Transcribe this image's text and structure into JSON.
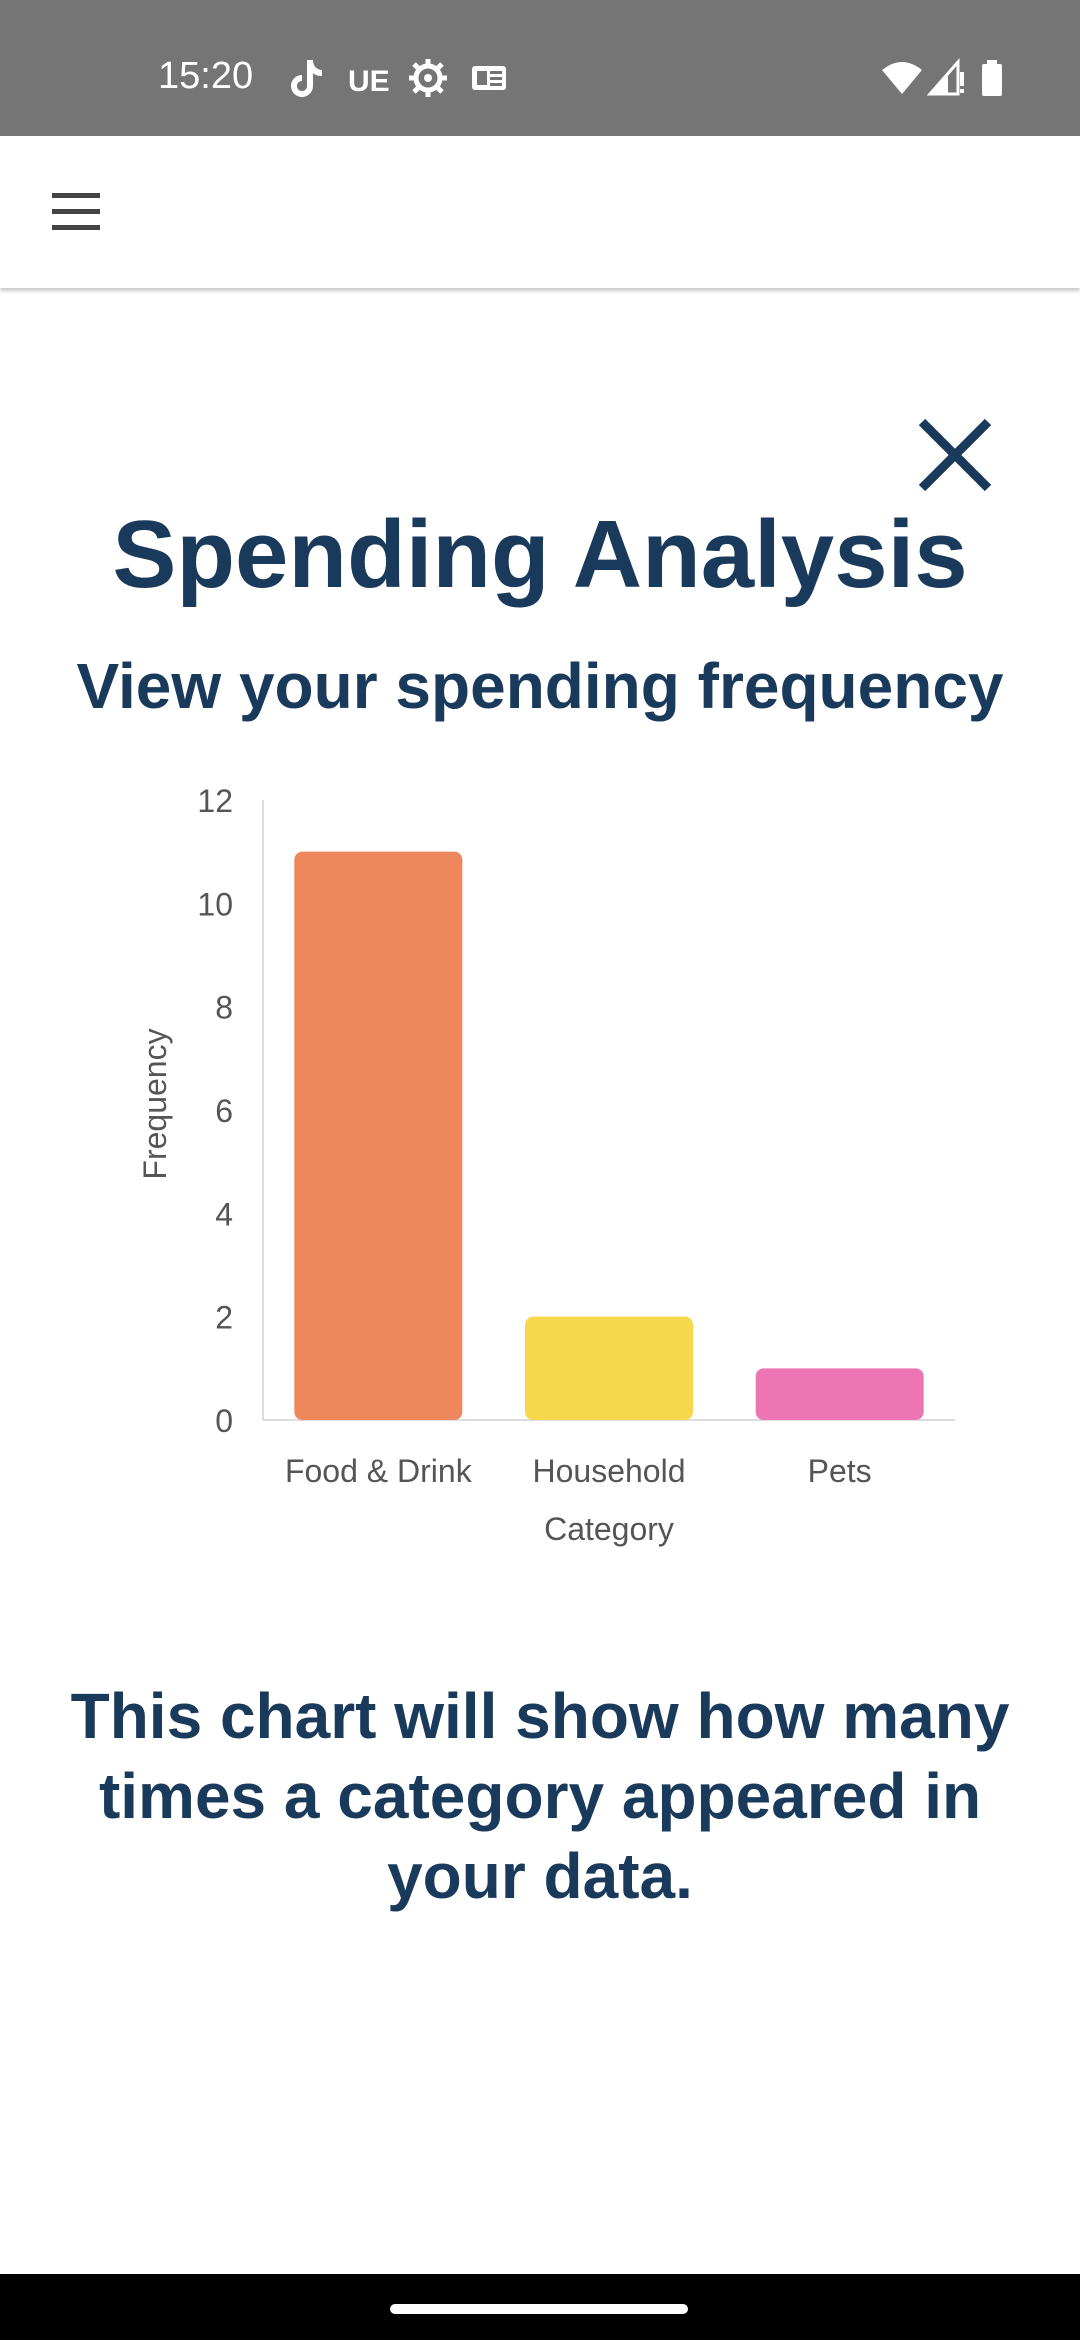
{
  "status_bar": {
    "time": "15:20",
    "notification_icons": [
      "tiktok-icon",
      "ue-icon",
      "settings-gear-icon",
      "news-card-icon"
    ],
    "ue_label": "UE",
    "right_icons": [
      "wifi-icon",
      "signal-icon",
      "battery-icon"
    ]
  },
  "app_bar": {
    "menu_icon": "hamburger-menu-icon"
  },
  "dialog": {
    "close_icon": "close-icon",
    "title": "Spending Analysis",
    "subtitle": "View your spending frequency",
    "description": "This chart will show how many times a category appeared in your data."
  },
  "chart_data": {
    "type": "bar",
    "categories": [
      "Food & Drink",
      "Household",
      "Pets"
    ],
    "values": [
      11,
      2,
      1
    ],
    "colors": [
      "#ef875c",
      "#f7d74b",
      "#ee75b4"
    ],
    "xlabel": "Category",
    "ylabel": "Frequency",
    "ylim": [
      0,
      12
    ],
    "yticks": [
      "0",
      "2",
      "4",
      "6",
      "8",
      "10",
      "12"
    ],
    "grid": false,
    "legend": "none"
  },
  "colors": {
    "status_bar_bg": "#757575",
    "title_text": "#1a3a5c",
    "axis_text": "#555555"
  }
}
